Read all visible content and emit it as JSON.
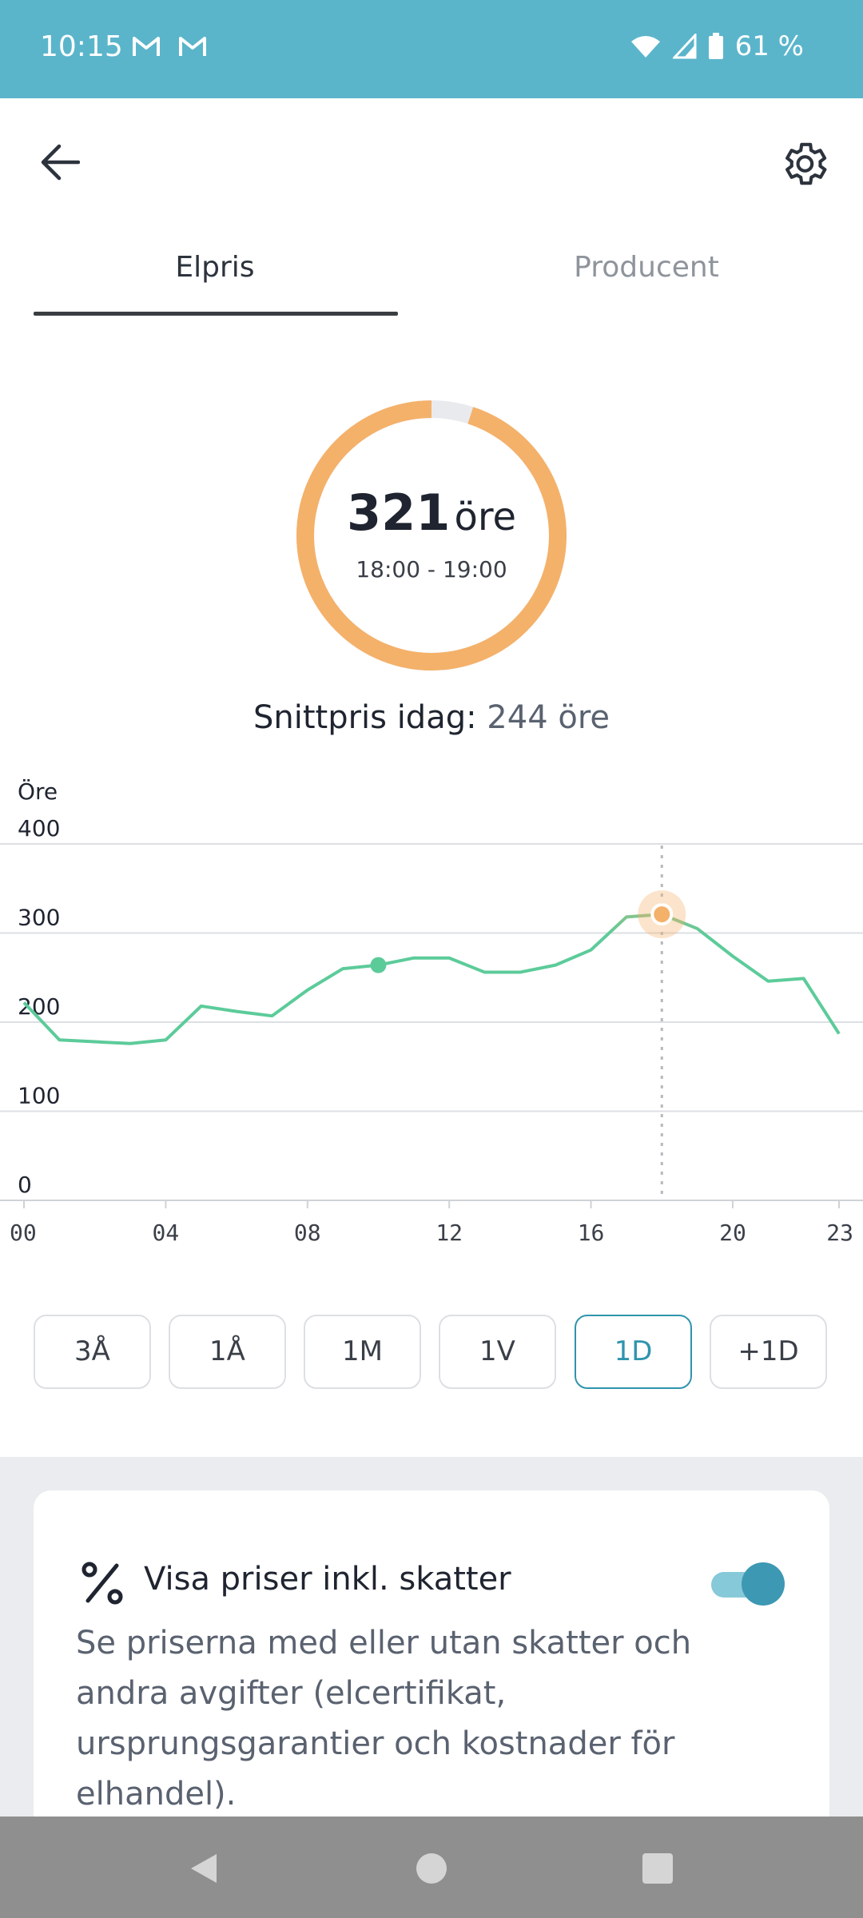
{
  "status_bar": {
    "time": "10:15",
    "battery": "61 %",
    "mail_icons": [
      "gmail-icon",
      "gmail-icon"
    ]
  },
  "tabs": [
    {
      "label": "Elpris",
      "active": true
    },
    {
      "label": "Producent",
      "active": false
    }
  ],
  "current_price": {
    "value": "321",
    "unit": "öre",
    "time_range": "18:00 - 19:00",
    "gauge_fraction": 0.95
  },
  "average": {
    "label": "Snittpris idag:",
    "value": "244 öre"
  },
  "chart_data": {
    "type": "line",
    "ylabel": "Öre",
    "ylim": [
      0,
      400
    ],
    "y_ticks": [
      "400",
      "300",
      "200",
      "100",
      "0"
    ],
    "x_ticks": [
      "00",
      "04",
      "08",
      "12",
      "16",
      "20",
      "23"
    ],
    "x": [
      0,
      1,
      2,
      3,
      4,
      5,
      6,
      7,
      8,
      9,
      10,
      11,
      12,
      13,
      14,
      15,
      16,
      17,
      18,
      19,
      20,
      21,
      22,
      23
    ],
    "values": [
      222,
      180,
      178,
      176,
      180,
      218,
      212,
      207,
      236,
      260,
      264,
      272,
      272,
      256,
      256,
      264,
      281,
      318,
      321,
      305,
      274,
      246,
      249,
      187
    ],
    "current_hour": 18,
    "now_hour": 10,
    "colors": {
      "low": "#5ccb9a",
      "high": "#f4b16a"
    }
  },
  "range_buttons": [
    {
      "label": "3Å",
      "active": false
    },
    {
      "label": "1Å",
      "active": false
    },
    {
      "label": "1M",
      "active": false
    },
    {
      "label": "1V",
      "active": false
    },
    {
      "label": "1D",
      "active": true
    },
    {
      "label": "+1D",
      "active": false
    }
  ],
  "tax_card": {
    "title": "Visa priser inkl. skatter",
    "description": "Se priserna med eller utan skatter och andra avgifter (elcertifikat, ursprungsgarantier och kostnader för elhandel).",
    "toggle_on": true
  }
}
